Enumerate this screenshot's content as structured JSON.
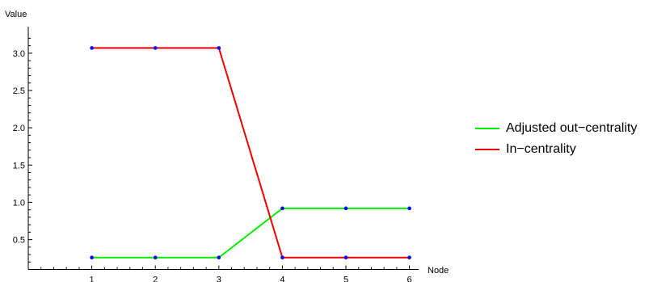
{
  "chart_data": {
    "type": "line",
    "title": "",
    "xlabel": "Node",
    "ylabel": "Value",
    "x": [
      1,
      2,
      3,
      4,
      5,
      6
    ],
    "xlim": [
      0,
      6
    ],
    "ylim": [
      0.1,
      3.3
    ],
    "xticks": [
      "1",
      "2",
      "3",
      "4",
      "5",
      "6"
    ],
    "yticks": [
      "0.5",
      "1.0",
      "1.5",
      "2.0",
      "2.5",
      "3.0"
    ],
    "grid": false,
    "legend_position": "right",
    "point_color": "#0000ff",
    "series": [
      {
        "name": "Adjusted out−centrality",
        "color": "#00ee00",
        "values": [
          0.26,
          0.26,
          0.26,
          0.92,
          0.92,
          0.92
        ]
      },
      {
        "name": "In−centrality",
        "color": "#ee0000",
        "values": [
          3.07,
          3.07,
          3.07,
          0.26,
          0.26,
          0.26
        ]
      }
    ]
  }
}
